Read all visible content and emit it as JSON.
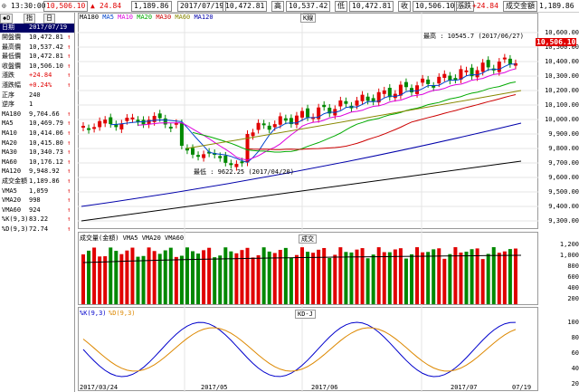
{
  "topbar": {
    "time": "13:30:00",
    "price": "10,506.10",
    "change_arrow": "▲",
    "change": "24.84",
    "value": "1,189.86",
    "date": "2017/07/19",
    "open_value": "10,472.81",
    "high_label": "高",
    "high_value": "10,537.42",
    "low_label": "低",
    "low_value": "10,472.81",
    "close_label": "收",
    "close_value": "10,506.10",
    "chg_label": "漲跌",
    "chg_value": "+24.84",
    "amount_label": "成交金額",
    "amount_value": "1,189.86"
  },
  "left": {
    "tabs": [
      "◆D",
      "指",
      "日"
    ],
    "date_label": "日期",
    "date_value": "2017/07/19",
    "rows": [
      {
        "label": "開盤價",
        "value": "10,472.81",
        "arrow": true
      },
      {
        "label": "最高價",
        "value": "10,537.42",
        "arrow": true
      },
      {
        "label": "最低價",
        "value": "10,472.81",
        "arrow": true
      },
      {
        "label": "收盤價",
        "value": "10,506.10",
        "arrow": true
      },
      {
        "label": "漲跌",
        "value": "+24.84",
        "arrow": true,
        "red": true
      },
      {
        "label": "漲跌幅",
        "value": "+0.24%",
        "arrow": true,
        "red": true
      },
      {
        "label": "正序",
        "value": "240",
        "arrow": false
      },
      {
        "label": "逆序",
        "value": "1",
        "arrow": false
      },
      {
        "label": "MA180",
        "value": "9,704.66",
        "arrow": true
      },
      {
        "label": "MA5",
        "value": "10,469.79",
        "arrow": true
      },
      {
        "label": "MA10",
        "value": "10,414.06",
        "arrow": true
      },
      {
        "label": "MA20",
        "value": "10,415.80",
        "arrow": true
      },
      {
        "label": "MA30",
        "value": "10,340.73",
        "arrow": true
      },
      {
        "label": "MA60",
        "value": "10,176.12",
        "arrow": true
      },
      {
        "label": "MA120",
        "value": "9,948.92",
        "arrow": true
      },
      {
        "label": "成交金額",
        "value": "1,189.86",
        "arrow": true
      },
      {
        "label": "VMA5",
        "value": "1,059",
        "arrow": true
      },
      {
        "label": "VMA20",
        "value": "998",
        "arrow": true
      },
      {
        "label": "VMA60",
        "value": "924",
        "arrow": true
      },
      {
        "label": "%K(9,3)",
        "value": "83.22",
        "arrow": true
      },
      {
        "label": "%D(9,3)",
        "value": "72.74",
        "arrow": true
      }
    ]
  },
  "price_panel": {
    "legend": [
      {
        "label": "MA180",
        "color": "#000000"
      },
      {
        "label": "MA5",
        "color": "#0044cc"
      },
      {
        "label": "MA10",
        "color": "#dd00dd"
      },
      {
        "label": "MA20",
        "color": "#00aa00"
      },
      {
        "label": "MA30",
        "color": "#cc0000"
      },
      {
        "label": "MA60",
        "color": "#888800"
      },
      {
        "label": "MA120",
        "color": "#0000aa"
      }
    ],
    "title": "K線",
    "high_note": "最高 : 10545.7 (2017/06/27)",
    "low_note": "最低 : 9622.25 (2017/04/20)",
    "last_price": "10,506.10",
    "y_ticks": [
      "10,600.00",
      "10,500.00",
      "10,400.00",
      "10,300.00",
      "10,200.00",
      "10,100.00",
      "10,000.00",
      "9,900.00",
      "9,800.00",
      "9,700.00",
      "9,600.00",
      "9,500.00",
      "9,400.00",
      "9,300.00"
    ]
  },
  "volume_panel": {
    "legend": "成交量(金額) VMA5 VMA20 VMA60",
    "title": "成交",
    "y_ticks": [
      "1,200",
      "1,000",
      "800",
      "600",
      "400",
      "200"
    ]
  },
  "kd_panel": {
    "legend_k": "%K(9,3)",
    "legend_d": "%D(9,3)",
    "title": "KD-J",
    "y_ticks": [
      "100",
      "80",
      "60",
      "40",
      "20"
    ]
  },
  "x_axis": [
    "2017/03/24",
    "2017/05",
    "2017/06",
    "2017/07",
    "07/19"
  ],
  "colors": {
    "up": "#e00000",
    "down": "#008800",
    "ma5": "#0044cc",
    "ma10": "#dd00dd",
    "ma20": "#00aa00",
    "ma30": "#cc0000",
    "ma60": "#888800",
    "ma120": "#0000aa",
    "k": "#0000cc",
    "d": "#dd8800"
  }
}
